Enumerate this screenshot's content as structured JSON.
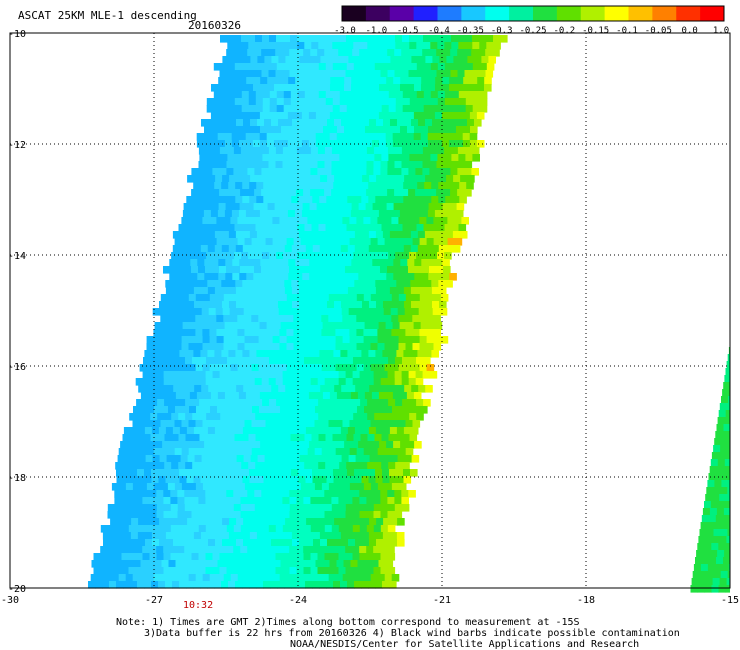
{
  "header": {
    "title": "ASCAT 25KM MLE-1 descending",
    "date": "20160326"
  },
  "colorbar": {
    "labels": [
      "-3.0",
      "-1.0",
      "-0.5",
      "-0.4",
      "-0.35",
      "-0.3",
      "-0.25",
      "-0.2",
      "-0.15",
      "-0.1",
      "-0.05",
      "0.0",
      "1.0"
    ],
    "colors": [
      "#1a0020",
      "#3c0060",
      "#5a00a8",
      "#2020ff",
      "#1e7cff",
      "#18c8ff",
      "#00ffee",
      "#00f0a0",
      "#20e040",
      "#60e000",
      "#b0f000",
      "#ffff00",
      "#ffc000",
      "#ff8000",
      "#ff3000",
      "#ff0000"
    ]
  },
  "axes": {
    "lat_labels": [
      "-10",
      "-12",
      "-14",
      "-16",
      "-18",
      "-20"
    ],
    "lon_labels": [
      "-30",
      "-27",
      "-24",
      "-21",
      "-18",
      "-15"
    ],
    "lat_range": [
      -20,
      -10
    ],
    "lon_range": [
      -30,
      -15
    ]
  },
  "time_label": "10:32",
  "notes": [
    "Note: 1) Times are GMT 2)Times along bottom correspond to measurement at -15S",
    "3)Data buffer is 22 hrs from 20160326 4) Black wind barbs indicate possible contamination",
    "NOAA/NESDIS/Center for Satellite Applications and Research"
  ]
}
